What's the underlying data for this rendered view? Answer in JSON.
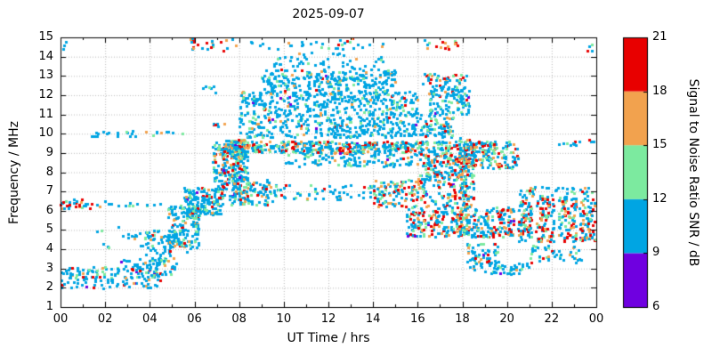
{
  "chart_data": {
    "type": "scatter",
    "title": "2025-09-07",
    "xlabel": "UT Time / hrs",
    "ylabel": "Frequency / MHz",
    "xlim": [
      0,
      24
    ],
    "ylim": [
      1,
      15
    ],
    "grid": true,
    "marker_size_px": 3,
    "seed": 42,
    "x_ticks": {
      "values": [
        0,
        2,
        4,
        6,
        8,
        10,
        12,
        14,
        16,
        18,
        20,
        22,
        24
      ],
      "labels": [
        "00",
        "02",
        "04",
        "06",
        "08",
        "10",
        "12",
        "14",
        "16",
        "18",
        "20",
        "22",
        "00"
      ]
    },
    "y_ticks": [
      1,
      2,
      3,
      4,
      5,
      6,
      7,
      8,
      9,
      10,
      11,
      12,
      13,
      14,
      15
    ],
    "colorbar": {
      "label": "Signal to Noise Ratio SNR / dB",
      "ticks": [
        6,
        9,
        12,
        15,
        18,
        21
      ],
      "range": [
        6,
        21
      ],
      "bands": [
        {
          "range": [
            6,
            9
          ],
          "color": "#6f00e0",
          "name": "purple"
        },
        {
          "range": [
            9,
            12
          ],
          "color": "#00a5e3",
          "name": "blue"
        },
        {
          "range": [
            12,
            15
          ],
          "color": "#7cea9f",
          "name": "green"
        },
        {
          "range": [
            15,
            18
          ],
          "color": "#f2a24e",
          "name": "orange"
        },
        {
          "range": [
            18,
            21
          ],
          "color": "#e80000",
          "name": "red"
        }
      ]
    },
    "clusters": [
      {
        "t": [
          0.0,
          1.4
        ],
        "f": [
          6.1,
          6.6
        ],
        "n": 30,
        "mix": [
          0,
          0.45,
          0.1,
          0.15,
          0.3
        ]
      },
      {
        "t": [
          0.0,
          2.6
        ],
        "f": [
          1.9,
          3.1
        ],
        "n": 80,
        "mix": [
          0.02,
          0.7,
          0.15,
          0.08,
          0.05
        ]
      },
      {
        "t": [
          1.0,
          5.5
        ],
        "f": [
          9.85,
          10.15
        ],
        "n": 28,
        "mix": [
          0,
          0.78,
          0.1,
          0.06,
          0.06
        ]
      },
      {
        "t": [
          1.5,
          4.6
        ],
        "f": [
          6.2,
          6.5
        ],
        "n": 16,
        "mix": [
          0,
          0.85,
          0.1,
          0.05,
          0
        ]
      },
      {
        "t": [
          2.5,
          4.5
        ],
        "f": [
          2.0,
          3.5
        ],
        "n": 90,
        "mix": [
          0.02,
          0.72,
          0.14,
          0.07,
          0.05
        ]
      },
      {
        "t": [
          3.8,
          5.2
        ],
        "f": [
          2.5,
          5.0
        ],
        "n": 110,
        "mix": [
          0.01,
          0.7,
          0.2,
          0.06,
          0.03
        ]
      },
      {
        "t": [
          4.8,
          6.2
        ],
        "f": [
          4.0,
          6.3
        ],
        "n": 150,
        "mix": [
          0.01,
          0.68,
          0.2,
          0.07,
          0.04
        ]
      },
      {
        "t": [
          5.5,
          7.2
        ],
        "f": [
          5.8,
          7.2
        ],
        "n": 170,
        "mix": [
          0.01,
          0.75,
          0.15,
          0.06,
          0.03
        ]
      },
      {
        "t": [
          5.8,
          6.4
        ],
        "f": [
          14.4,
          15.0
        ],
        "n": 10,
        "mix": [
          0,
          0.2,
          0.1,
          0.2,
          0.5
        ]
      },
      {
        "t": [
          6.5,
          8.0
        ],
        "f": [
          14.3,
          14.9
        ],
        "n": 13,
        "mix": [
          0,
          0.4,
          0.1,
          0.2,
          0.3
        ]
      },
      {
        "t": [
          6.8,
          8.2
        ],
        "f": [
          7.5,
          9.6
        ],
        "n": 140,
        "mix": [
          0.01,
          0.6,
          0.18,
          0.12,
          0.09
        ]
      },
      {
        "t": [
          7.5,
          19.5
        ],
        "f": [
          9.0,
          9.6
        ],
        "n": 480,
        "mix": [
          0.01,
          0.55,
          0.18,
          0.13,
          0.13
        ]
      },
      {
        "t": [
          8.0,
          16.0
        ],
        "f": [
          9.8,
          12.2
        ],
        "n": 650,
        "mix": [
          0.01,
          0.78,
          0.15,
          0.04,
          0.02
        ]
      },
      {
        "t": [
          9.0,
          15.0
        ],
        "f": [
          12.2,
          13.3
        ],
        "n": 250,
        "mix": [
          0.01,
          0.8,
          0.13,
          0.04,
          0.02
        ]
      },
      {
        "t": [
          9.5,
          14.5
        ],
        "f": [
          13.3,
          14.2
        ],
        "n": 55,
        "mix": [
          0,
          0.85,
          0.1,
          0.03,
          0.02
        ]
      },
      {
        "t": [
          8.0,
          15.0
        ],
        "f": [
          14.4,
          14.8
        ],
        "n": 28,
        "mix": [
          0,
          0.75,
          0.1,
          0.05,
          0.1
        ]
      },
      {
        "t": [
          7.0,
          9.5
        ],
        "f": [
          6.3,
          7.6
        ],
        "n": 130,
        "mix": [
          0.01,
          0.55,
          0.2,
          0.13,
          0.11
        ]
      },
      {
        "t": [
          9.5,
          14.0
        ],
        "f": [
          6.6,
          7.4
        ],
        "n": 60,
        "mix": [
          0.01,
          0.7,
          0.18,
          0.07,
          0.04
        ]
      },
      {
        "t": [
          14.0,
          18.5
        ],
        "f": [
          6.2,
          7.6
        ],
        "n": 210,
        "mix": [
          0.01,
          0.45,
          0.17,
          0.17,
          0.2
        ]
      },
      {
        "t": [
          15.5,
          20.3
        ],
        "f": [
          4.6,
          6.2
        ],
        "n": 340,
        "mix": [
          0.01,
          0.5,
          0.15,
          0.15,
          0.19
        ]
      },
      {
        "t": [
          16.0,
          18.5
        ],
        "f": [
          7.6,
          9.0
        ],
        "n": 170,
        "mix": [
          0.01,
          0.55,
          0.18,
          0.13,
          0.13
        ]
      },
      {
        "t": [
          18.0,
          20.5
        ],
        "f": [
          8.2,
          9.6
        ],
        "n": 150,
        "mix": [
          0.01,
          0.5,
          0.15,
          0.15,
          0.19
        ]
      },
      {
        "t": [
          16.2,
          18.2
        ],
        "f": [
          12.6,
          13.1
        ],
        "n": 38,
        "mix": [
          0,
          0.45,
          0.15,
          0.18,
          0.22
        ]
      },
      {
        "t": [
          16.5,
          18.3
        ],
        "f": [
          11.0,
          12.5
        ],
        "n": 110,
        "mix": [
          0.01,
          0.7,
          0.2,
          0.05,
          0.04
        ]
      },
      {
        "t": [
          16.3,
          17.8
        ],
        "f": [
          14.4,
          14.9
        ],
        "n": 15,
        "mix": [
          0,
          0.4,
          0.1,
          0.15,
          0.35
        ]
      },
      {
        "t": [
          18.2,
          19.6
        ],
        "f": [
          2.9,
          4.3
        ],
        "n": 65,
        "mix": [
          0.02,
          0.78,
          0.12,
          0.05,
          0.03
        ]
      },
      {
        "t": [
          19.0,
          21.0
        ],
        "f": [
          2.7,
          3.3
        ],
        "n": 38,
        "mix": [
          0.02,
          0.8,
          0.12,
          0.04,
          0.02
        ]
      },
      {
        "t": [
          20.5,
          21.1
        ],
        "f": [
          4.4,
          6.6
        ],
        "n": 80,
        "mix": [
          0.01,
          0.45,
          0.18,
          0.16,
          0.2
        ]
      },
      {
        "t": [
          21.3,
          22.1
        ],
        "f": [
          4.4,
          6.6
        ],
        "n": 85,
        "mix": [
          0.01,
          0.45,
          0.18,
          0.16,
          0.2
        ]
      },
      {
        "t": [
          22.3,
          23.1
        ],
        "f": [
          4.4,
          6.6
        ],
        "n": 80,
        "mix": [
          0.01,
          0.45,
          0.18,
          0.16,
          0.2
        ]
      },
      {
        "t": [
          23.25,
          23.95
        ],
        "f": [
          4.4,
          6.6
        ],
        "n": 75,
        "mix": [
          0.01,
          0.45,
          0.18,
          0.16,
          0.2
        ]
      },
      {
        "t": [
          20.5,
          23.8
        ],
        "f": [
          6.6,
          7.3
        ],
        "n": 55,
        "mix": [
          0.01,
          0.65,
          0.15,
          0.09,
          0.1
        ]
      },
      {
        "t": [
          21.0,
          23.5
        ],
        "f": [
          3.3,
          4.2
        ],
        "n": 45,
        "mix": [
          0.02,
          0.7,
          0.18,
          0.06,
          0.04
        ]
      },
      {
        "t": [
          10.0,
          16.0
        ],
        "f": [
          8.3,
          9.0
        ],
        "n": 110,
        "mix": [
          0.01,
          0.7,
          0.16,
          0.08,
          0.05
        ]
      },
      {
        "t": [
          7.3,
          8.3
        ],
        "f": [
          8.8,
          9.7
        ],
        "n": 110,
        "mix": [
          0.01,
          0.5,
          0.18,
          0.15,
          0.16
        ]
      },
      {
        "t": [
          12.5,
          13.2
        ],
        "f": [
          14.6,
          15.0
        ],
        "n": 6,
        "mix": [
          0,
          0.2,
          0.1,
          0.2,
          0.5
        ]
      },
      {
        "t": [
          2.9,
          3.4
        ],
        "f": [
          4.4,
          4.8
        ],
        "n": 8,
        "mix": [
          0,
          0.85,
          0.1,
          0.05,
          0
        ]
      },
      {
        "t": [
          22.3,
          23.9
        ],
        "f": [
          9.3,
          9.7
        ],
        "n": 12,
        "mix": [
          0,
          0.7,
          0.1,
          0.05,
          0.15
        ]
      },
      {
        "t": [
          0.2,
          6.0
        ],
        "f": [
          3.6,
          5.2
        ],
        "n": 15,
        "mix": [
          0,
          0.8,
          0.12,
          0.05,
          0.03
        ]
      },
      {
        "t": [
          0.0,
          0.5
        ],
        "f": [
          14.3,
          14.9
        ],
        "n": 3,
        "mix": [
          0,
          0.9,
          0.1,
          0,
          0
        ]
      },
      {
        "t": [
          23.2,
          24.0
        ],
        "f": [
          14.3,
          14.7
        ],
        "n": 4,
        "mix": [
          0,
          0.85,
          0.1,
          0,
          0.05
        ]
      },
      {
        "t": [
          16.0,
          17.6
        ],
        "f": [
          9.8,
          11.0
        ],
        "n": 80,
        "mix": [
          0.01,
          0.65,
          0.2,
          0.08,
          0.06
        ]
      },
      {
        "t": [
          6.8,
          7.4
        ],
        "f": [
          10.2,
          10.6
        ],
        "n": 6,
        "mix": [
          0,
          0.3,
          0.1,
          0.2,
          0.4
        ]
      },
      {
        "t": [
          7.7,
          8.4
        ],
        "f": [
          6.3,
          9.0
        ],
        "n": 90,
        "mix": [
          0.01,
          0.6,
          0.2,
          0.1,
          0.09
        ]
      },
      {
        "t": [
          17.85,
          18.3
        ],
        "f": [
          4.8,
          9.8
        ],
        "n": 90,
        "mix": [
          0,
          0.35,
          0.15,
          0.2,
          0.3
        ]
      },
      {
        "t": [
          6.3,
          7.0
        ],
        "f": [
          12.1,
          12.5
        ],
        "n": 6,
        "mix": [
          0,
          0.9,
          0.1,
          0,
          0
        ]
      }
    ]
  }
}
